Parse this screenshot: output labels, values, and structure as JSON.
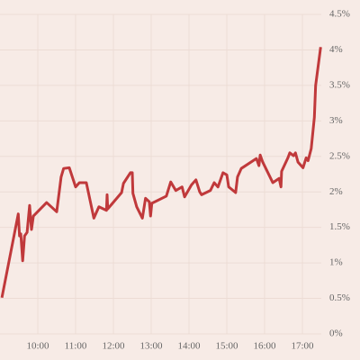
{
  "chart_data": {
    "type": "line",
    "x": [
      "09:03",
      "09:29",
      "09:31",
      "09:33",
      "09:36",
      "09:39",
      "09:43",
      "09:47",
      "09:50",
      "09:53",
      "10:14",
      "10:30",
      "10:37",
      "10:41",
      "10:50",
      "11:00",
      "11:06",
      "11:17",
      "11:29",
      "11:37",
      "11:49",
      "11:50",
      "11:51",
      "12:13",
      "12:16",
      "12:27",
      "12:30",
      "12:31",
      "12:37",
      "12:46",
      "12:51",
      "12:57",
      "12:59",
      "13:01",
      "13:24",
      "13:31",
      "13:39",
      "13:49",
      "13:53",
      "14:04",
      "14:11",
      "14:17",
      "14:20",
      "14:34",
      "14:40",
      "14:46",
      "14:54",
      "15:00",
      "15:03",
      "15:14",
      "15:17",
      "15:23",
      "15:47",
      "15:51",
      "15:53",
      "15:57",
      "16:13",
      "16:23",
      "16:26",
      "16:27",
      "16:37",
      "16:40",
      "16:46",
      "16:49",
      "16:53",
      "17:01",
      "17:06",
      "17:09",
      "17:14",
      "17:19",
      "17:21",
      "17:29"
    ],
    "series": [
      {
        "color": "#c0393b",
        "values": [
          0.51,
          1.69,
          1.38,
          1.41,
          1.03,
          1.38,
          1.43,
          1.81,
          1.47,
          1.66,
          1.85,
          1.72,
          2.21,
          2.33,
          2.34,
          2.07,
          2.13,
          2.13,
          1.63,
          1.79,
          1.74,
          1.96,
          1.76,
          1.99,
          2.12,
          2.27,
          2.27,
          1.98,
          1.79,
          1.63,
          1.91,
          1.86,
          1.66,
          1.84,
          1.94,
          2.14,
          2.02,
          2.07,
          1.93,
          2.1,
          2.17,
          2.0,
          1.96,
          2.02,
          2.13,
          2.07,
          2.27,
          2.24,
          2.07,
          1.99,
          2.21,
          2.33,
          2.47,
          2.37,
          2.52,
          2.42,
          2.13,
          2.19,
          2.07,
          2.29,
          2.48,
          2.55,
          2.51,
          2.55,
          2.42,
          2.34,
          2.48,
          2.44,
          2.61,
          3.05,
          3.5,
          4.04
        ]
      }
    ],
    "xlim": [
      "09:00",
      "17:30"
    ],
    "xticks": [
      "10:00",
      "11:00",
      "12:00",
      "13:00",
      "14:00",
      "15:00",
      "16:00",
      "17:00"
    ],
    "ylim": [
      0,
      4.5
    ],
    "yticks": [
      {
        "value": 0,
        "label": "0%"
      },
      {
        "value": 0.5,
        "label": "0.5%"
      },
      {
        "value": 1,
        "label": "1%"
      },
      {
        "value": 1.5,
        "label": "1.5%"
      },
      {
        "value": 2,
        "label": "2%"
      },
      {
        "value": 2.5,
        "label": "2.5%"
      },
      {
        "value": 3,
        "label": "3%"
      },
      {
        "value": 3.5,
        "label": "3.5%"
      },
      {
        "value": 4,
        "label": "4%"
      },
      {
        "value": 4.5,
        "label": "4.5%"
      }
    ],
    "grid": true
  }
}
